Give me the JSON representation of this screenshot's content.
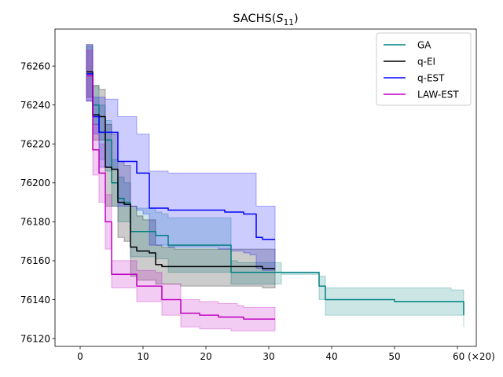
{
  "chart_data": {
    "type": "line",
    "title_main": "SACHS(",
    "title_sym": "S",
    "title_sub": "11",
    "title_close": ")",
    "xlim": [
      -4,
      63
    ],
    "ylim": [
      76116,
      76279
    ],
    "x_ticks": [
      0,
      10,
      20,
      30,
      40,
      50,
      60
    ],
    "x_tick_labels": [
      "0",
      "10",
      "20",
      "30",
      "40",
      "50",
      "60 (×20)"
    ],
    "y_ticks": [
      76120,
      76140,
      76160,
      76180,
      76200,
      76220,
      76240,
      76260
    ],
    "y_tick_labels": [
      "76120",
      "76140",
      "76160",
      "76180",
      "76200",
      "76220",
      "76240",
      "76260"
    ],
    "legend_position": "top-right",
    "series": [
      {
        "name": "GA",
        "color": "#008080",
        "x": [
          1,
          2,
          3,
          4,
          5,
          6,
          7,
          8,
          9,
          10,
          11,
          12,
          13,
          14,
          15,
          16,
          17,
          18,
          19,
          20,
          21,
          22,
          23,
          24,
          25,
          26,
          27,
          28,
          29,
          30,
          31,
          32,
          33,
          34,
          35,
          36,
          37,
          38,
          39,
          40,
          45,
          50,
          55,
          57,
          58,
          59,
          60,
          61
        ],
        "values": [
          76256,
          76240,
          76226,
          76222,
          76200,
          76192,
          76190,
          76175,
          76175,
          76175,
          76175,
          76173,
          76173,
          76168,
          76168,
          76168,
          76168,
          76168,
          76168,
          76168,
          76168,
          76168,
          76168,
          76154,
          76154,
          76154,
          76154,
          76154,
          76154,
          76154,
          76154,
          76154,
          76154,
          76154,
          76154,
          76154,
          76154,
          76147,
          76140,
          76140,
          76140,
          76139,
          76139,
          76139,
          76139,
          76139,
          76139,
          76132
        ],
        "upper": [
          76270,
          76250,
          76240,
          76232,
          76212,
          76203,
          76200,
          76188,
          76187,
          76187,
          76187,
          76185,
          76184,
          76182,
          76182,
          76182,
          76182,
          76182,
          76182,
          76182,
          76182,
          76182,
          76182,
          76160,
          76159,
          76159,
          76159,
          76159,
          76159,
          76159,
          76159,
          76154,
          76154,
          76154,
          76154,
          76154,
          76154,
          76152,
          76146,
          76146,
          76146,
          76146,
          76146,
          76146,
          76146,
          76145,
          76145,
          76138
        ],
        "lower": [
          76242,
          76230,
          76212,
          76206,
          76188,
          76180,
          76180,
          76162,
          76162,
          76162,
          76162,
          76161,
          76161,
          76154,
          76154,
          76154,
          76154,
          76154,
          76154,
          76154,
          76154,
          76154,
          76154,
          76148,
          76148,
          76148,
          76148,
          76148,
          76148,
          76148,
          76148,
          76153,
          76153,
          76153,
          76153,
          76153,
          76153,
          76140,
          76132,
          76132,
          76132,
          76132,
          76132,
          76132,
          76132,
          76132,
          76132,
          76126
        ]
      },
      {
        "name": "q-EI",
        "color": "#000000",
        "x": [
          1,
          2,
          3,
          4,
          5,
          6,
          7,
          8,
          9,
          10,
          11,
          12,
          13,
          14,
          15,
          16,
          17,
          18,
          19,
          20,
          21,
          22,
          23,
          24,
          25,
          26,
          27,
          28,
          29,
          30,
          31
        ],
        "values": [
          76257,
          76235,
          76234,
          76208,
          76207,
          76190,
          76189,
          76167,
          76165,
          76165,
          76164,
          76158,
          76157,
          76157,
          76157,
          76157,
          76157,
          76157,
          76157,
          76157,
          76157,
          76157,
          76157,
          76157,
          76157,
          76157,
          76157,
          76157,
          76156,
          76156,
          76156
        ],
        "upper": [
          76271,
          76250,
          76248,
          76230,
          76225,
          76211,
          76209,
          76188,
          76183,
          76181,
          76181,
          76168,
          76167,
          76167,
          76166,
          76166,
          76166,
          76166,
          76166,
          76166,
          76166,
          76166,
          76166,
          76166,
          76166,
          76166,
          76166,
          76166,
          76166,
          76166,
          76166
        ],
        "lower": [
          76244,
          76222,
          76222,
          76188,
          76188,
          76172,
          76170,
          76152,
          76150,
          76150,
          76150,
          76148,
          76148,
          76148,
          76148,
          76147,
          76147,
          76147,
          76147,
          76147,
          76147,
          76147,
          76147,
          76147,
          76147,
          76147,
          76147,
          76147,
          76146,
          76146,
          76146
        ]
      },
      {
        "name": "q-EST",
        "color": "#0000ff",
        "x": [
          1,
          2,
          3,
          4,
          5,
          6,
          7,
          8,
          9,
          10,
          11,
          12,
          13,
          14,
          15,
          16,
          17,
          18,
          19,
          20,
          21,
          22,
          23,
          24,
          25,
          26,
          27,
          28,
          29,
          30,
          31
        ],
        "values": [
          76256,
          76234,
          76226,
          76226,
          76226,
          76211,
          76211,
          76211,
          76205,
          76205,
          76187,
          76187,
          76187,
          76186,
          76186,
          76186,
          76186,
          76186,
          76186,
          76186,
          76186,
          76186,
          76185,
          76185,
          76185,
          76184,
          76184,
          76172,
          76171,
          76171,
          76171
        ],
        "upper": [
          76271,
          76244,
          76244,
          76243,
          76243,
          76234,
          76234,
          76234,
          76225,
          76225,
          76206,
          76206,
          76206,
          76205,
          76205,
          76205,
          76205,
          76205,
          76205,
          76205,
          76205,
          76205,
          76205,
          76205,
          76205,
          76205,
          76205,
          76188,
          76188,
          76188,
          76187
        ],
        "lower": [
          76242,
          76225,
          76208,
          76208,
          76207,
          76188,
          76188,
          76188,
          76186,
          76184,
          76168,
          76168,
          76168,
          76167,
          76167,
          76167,
          76167,
          76167,
          76167,
          76167,
          76167,
          76166,
          76166,
          76165,
          76165,
          76164,
          76163,
          76156,
          76155,
          76155,
          76155
        ]
      },
      {
        "name": "LAW-EST",
        "color": "#c000c0",
        "x": [
          1,
          2,
          3,
          4,
          5,
          6,
          7,
          8,
          9,
          10,
          11,
          12,
          13,
          14,
          15,
          16,
          17,
          18,
          19,
          20,
          21,
          22,
          23,
          24,
          25,
          26,
          27,
          28,
          29,
          30,
          31
        ],
        "values": [
          76255,
          76217,
          76205,
          76180,
          76153,
          76153,
          76153,
          76153,
          76147,
          76147,
          76147,
          76147,
          76140,
          76140,
          76140,
          76133,
          76133,
          76133,
          76132,
          76132,
          76132,
          76131,
          76131,
          76131,
          76131,
          76130,
          76130,
          76130,
          76130,
          76130,
          76130
        ],
        "upper": [
          76268,
          76230,
          76220,
          76194,
          76160,
          76160,
          76160,
          76160,
          76155,
          76155,
          76155,
          76154,
          76148,
          76148,
          76148,
          76140,
          76140,
          76140,
          76139,
          76139,
          76139,
          76138,
          76138,
          76138,
          76137,
          76136,
          76136,
          76136,
          76136,
          76136,
          76136
        ],
        "lower": [
          76242,
          76204,
          76190,
          76166,
          76146,
          76146,
          76146,
          76146,
          76139,
          76139,
          76139,
          76139,
          76132,
          76132,
          76132,
          76126,
          76126,
          76126,
          76125,
          76125,
          76125,
          76125,
          76125,
          76124,
          76124,
          76124,
          76124,
          76124,
          76124,
          76124,
          76124
        ]
      }
    ]
  }
}
